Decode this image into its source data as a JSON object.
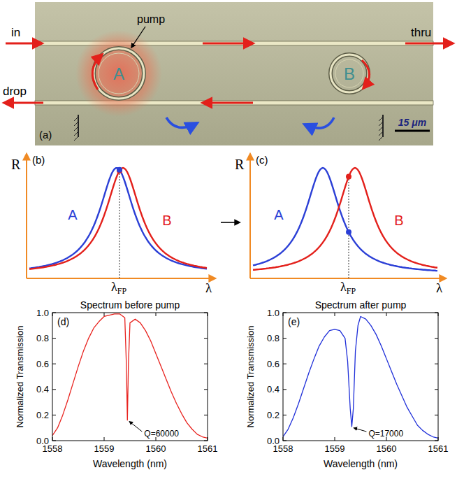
{
  "diagram": {
    "panel_a": {
      "label": "(a)",
      "in": "in",
      "drop": "drop",
      "thru": "thru",
      "pump": "pump",
      "ring_a": "A",
      "ring_b": "B",
      "scale_bar": "15 μm"
    },
    "panel_b": {
      "label": "(b)",
      "y_label": "R",
      "x_label": "λ",
      "marker_label": "λ",
      "marker_subscript": "FP",
      "curve_a": "A",
      "curve_b": "B"
    },
    "panel_c": {
      "label": "(c)",
      "y_label": "R",
      "x_label": "λ",
      "marker_label": "λ",
      "marker_subscript": "FP",
      "curve_a": "A",
      "curve_b": "B"
    }
  },
  "chart_data": [
    {
      "type": "line",
      "title": "Spectrum before pump",
      "x_label": "Wavelength (nm)",
      "y_label": "Normalized Transmission",
      "xlim": [
        1558,
        1561
      ],
      "xticks": [
        1558,
        1559,
        1560,
        1561
      ],
      "ylim": [
        0,
        1
      ],
      "yticks": [
        {
          "value": 0,
          "label": "0.0"
        },
        {
          "value": 0.2,
          "label": "0.2"
        },
        {
          "value": 0.4,
          "label": "0.4"
        },
        {
          "value": 0.6,
          "label": "0.6"
        },
        {
          "value": 0.8,
          "label": "0.8"
        },
        {
          "value": 1,
          "label": "1.0"
        }
      ],
      "annotations": [
        {
          "text": "(d)"
        },
        {
          "text": "Q=60000",
          "x": 1559.45,
          "y": 0.16
        }
      ],
      "x": [
        1558.0,
        1558.1,
        1558.2,
        1558.3,
        1558.4,
        1558.5,
        1558.6,
        1558.7,
        1558.8,
        1558.9,
        1559.0,
        1559.1,
        1559.2,
        1559.3,
        1559.4,
        1559.43,
        1559.45,
        1559.47,
        1559.5,
        1559.6,
        1559.7,
        1559.8,
        1559.9,
        1560.0,
        1560.1,
        1560.2,
        1560.3,
        1560.4,
        1560.5,
        1560.6,
        1560.7,
        1560.8,
        1560.9,
        1561.0
      ],
      "series": [
        {
          "color": "#e8231f",
          "values": [
            0.04,
            0.1,
            0.2,
            0.32,
            0.45,
            0.58,
            0.7,
            0.8,
            0.88,
            0.93,
            0.97,
            0.98,
            0.99,
            0.99,
            0.96,
            0.6,
            0.16,
            0.6,
            0.92,
            0.95,
            0.92,
            0.86,
            0.78,
            0.68,
            0.58,
            0.48,
            0.38,
            0.29,
            0.21,
            0.14,
            0.09,
            0.05,
            0.03,
            0.02
          ]
        }
      ]
    },
    {
      "type": "line",
      "title": "Spectrum after pump",
      "x_label": "Wavelength (nm)",
      "y_label": "Normalized Transmission",
      "xlim": [
        1558,
        1561
      ],
      "xticks": [
        1558,
        1559,
        1560,
        1561
      ],
      "ylim": [
        0,
        1
      ],
      "yticks": [
        {
          "value": 0,
          "label": "0.0"
        },
        {
          "value": 0.2,
          "label": "0.2"
        },
        {
          "value": 0.4,
          "label": "0.4"
        },
        {
          "value": 0.6,
          "label": "0.6"
        },
        {
          "value": 0.8,
          "label": "0.8"
        },
        {
          "value": 1,
          "label": "1.0"
        }
      ],
      "annotations": [
        {
          "text": "(e)"
        },
        {
          "text": "Q=17000",
          "x": 1559.33,
          "y": 0.11
        }
      ],
      "x": [
        1558.0,
        1558.1,
        1558.2,
        1558.3,
        1558.4,
        1558.5,
        1558.6,
        1558.7,
        1558.8,
        1558.9,
        1559.0,
        1559.1,
        1559.2,
        1559.25,
        1559.3,
        1559.33,
        1559.36,
        1559.4,
        1559.45,
        1559.5,
        1559.6,
        1559.7,
        1559.8,
        1559.9,
        1560.0,
        1560.1,
        1560.2,
        1560.3,
        1560.4,
        1560.5,
        1560.6,
        1560.7,
        1560.8,
        1560.9,
        1561.0
      ],
      "series": [
        {
          "color": "#1f2fd9",
          "values": [
            0.03,
            0.09,
            0.18,
            0.29,
            0.41,
            0.53,
            0.64,
            0.74,
            0.81,
            0.86,
            0.87,
            0.86,
            0.8,
            0.62,
            0.25,
            0.11,
            0.25,
            0.7,
            0.9,
            0.97,
            0.95,
            0.9,
            0.83,
            0.74,
            0.64,
            0.54,
            0.44,
            0.35,
            0.26,
            0.19,
            0.12,
            0.08,
            0.05,
            0.03,
            0.02
          ]
        }
      ]
    }
  ]
}
